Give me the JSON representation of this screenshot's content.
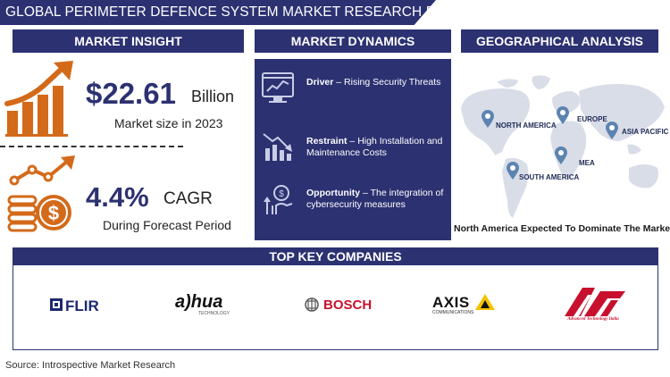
{
  "title": "GLOBAL PERIMETER DEFENCE SYSTEM MARKET RESEARCH REPORT",
  "sections": {
    "insight": "MARKET INSIGHT",
    "dynamics": "MARKET DYNAMICS",
    "geo": "GEOGRAPHICAL ANALYSIS",
    "companies": "TOP KEY COMPANIES"
  },
  "insight": {
    "market_size_value": "$22.61",
    "market_size_unit": "Billion",
    "market_size_caption": "Market size in 2023",
    "cagr_value": "4.4%",
    "cagr_unit": "CAGR",
    "cagr_caption": "During Forecast Period"
  },
  "dynamics": [
    {
      "label": "Driver",
      "text": "Rising Security Threats",
      "icon": "monitor-chart-icon"
    },
    {
      "label": "Restraint",
      "text": "High Installation and Maintenance Costs",
      "icon": "declining-chart-icon"
    },
    {
      "label": "Opportunity",
      "text": "The integration of cybersecurity measures",
      "icon": "hand-growth-icon"
    }
  ],
  "geo": {
    "regions": [
      "NORTH AMERICA",
      "EUROPE",
      "ASIA PACIFIC",
      "MEA",
      "SOUTH AMERICA"
    ],
    "caption": "North America Expected To Dominate The Market"
  },
  "companies": [
    {
      "name": "FLIR",
      "color": "#1c2a6e"
    },
    {
      "name": "a)hua",
      "subtext": "TECHNOLOGY",
      "color": "#c8102e"
    },
    {
      "name": "BOSCH",
      "color": "#c8102e"
    },
    {
      "name": "AXIS",
      "subtext": "COMMUNICATIONS",
      "color": "#111111"
    },
    {
      "name": "ATI",
      "subtext": "Advanced Technology Italia",
      "color": "#c8102e"
    }
  ],
  "colors": {
    "navy": "#2c3171",
    "orange": "#d36a1a",
    "map": "#d9dde8",
    "pin": "#5c84b0"
  },
  "source": "Source: Introspective Market Research"
}
